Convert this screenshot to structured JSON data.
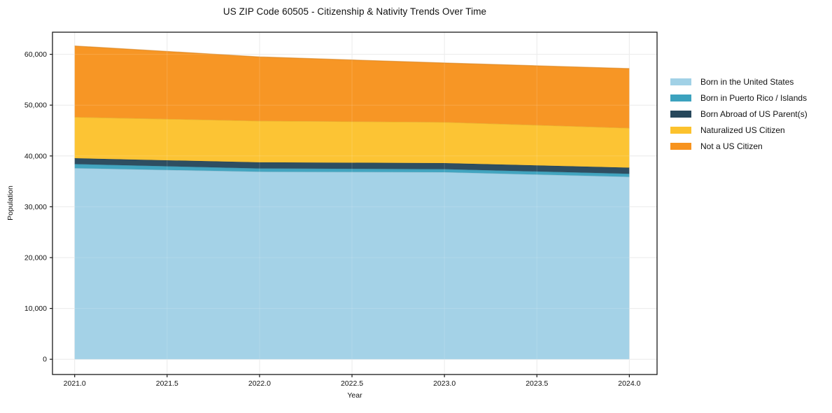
{
  "title": "US ZIP Code 60505 - Citizenship & Nativity Trends Over Time",
  "chart_data": {
    "type": "area",
    "stacked": true,
    "title": "US ZIP Code 60505 - Citizenship & Nativity Trends Over Time",
    "xlabel": "Year",
    "ylabel": "Population",
    "x": [
      2021,
      2022,
      2023,
      2024
    ],
    "series": [
      {
        "name": "Born in the United States",
        "color": "#A1D1E6",
        "values": [
          37600,
          36900,
          36800,
          35900
        ]
      },
      {
        "name": "Born in Puerto Rico / Islands",
        "color": "#3CA2BE",
        "values": [
          800,
          650,
          600,
          600
        ]
      },
      {
        "name": "Born Abroad of US Parent(s)",
        "color": "#27485C",
        "values": [
          1150,
          1200,
          1200,
          1200
        ]
      },
      {
        "name": "Naturalized US Citizen",
        "color": "#FCC22D",
        "values": [
          8100,
          8150,
          8050,
          7800
        ]
      },
      {
        "name": "Not a US Citizen",
        "color": "#F7931E",
        "values": [
          14000,
          12600,
          11650,
          11700
        ]
      }
    ],
    "x_ticks": [
      2021.0,
      2021.5,
      2022.0,
      2022.5,
      2023.0,
      2023.5,
      2024.0
    ],
    "y_ticks": [
      0,
      10000,
      20000,
      30000,
      40000,
      50000,
      60000
    ],
    "xlim": [
      2020.88,
      2024.15
    ],
    "ylim": [
      -3000,
      64350
    ],
    "grid": true,
    "grid_color": "#e8e8e8",
    "frame_color": "#1a1a1a",
    "legend_position": "right"
  }
}
